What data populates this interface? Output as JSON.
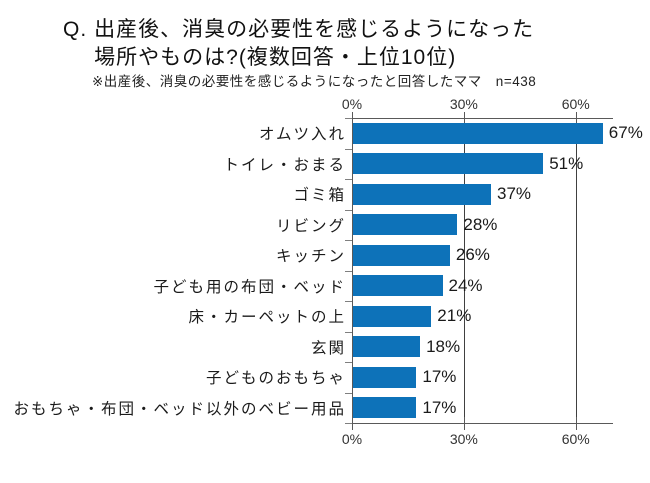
{
  "title": {
    "prefix": "Q.",
    "line1": "出産後、消臭の必要性を感じるようになった",
    "line2": "場所やものは?(複数回答・上位10位)"
  },
  "subtitle": "※出産後、消臭の必要性を感じるようになったと回答したママ　n=438",
  "chart_data": {
    "type": "bar",
    "orientation": "horizontal",
    "title": "Q. 出産後、消臭の必要性を感じるようになった場所やものは?(複数回答・上位10位)",
    "note": "※出産後、消臭の必要性を感じるようになったと回答したママ　n=438",
    "categories": [
      "オムツ入れ",
      "トイレ・おまる",
      "ゴミ箱",
      "リビング",
      "キッチン",
      "子ども用の布団・ベッド",
      "床・カーペットの上",
      "玄関",
      "子どものおもちゃ",
      "おもちゃ・布団・ベッド以外のベビー用品"
    ],
    "values": [
      67,
      51,
      37,
      28,
      26,
      24,
      21,
      18,
      17,
      17
    ],
    "value_labels": [
      "67%",
      "51%",
      "37%",
      "28%",
      "26%",
      "24%",
      "21%",
      "18%",
      "17%",
      "17%"
    ],
    "xlabel": "",
    "ylabel": "",
    "xlim": [
      0,
      70
    ],
    "x_ticks": {
      "values": [
        0,
        30,
        60
      ],
      "labels": [
        "0%",
        "30%",
        "60%"
      ]
    },
    "x_axis_positions": [
      "top",
      "bottom"
    ],
    "grid": "vertical gridlines at 30% and 60%",
    "legend": "none",
    "colors": {
      "bar": "#0d72b9",
      "axis_line": "#595959",
      "grid_line": "#404040",
      "tick_mark": "#7f7f7f",
      "text": "#1a1a1a"
    }
  }
}
